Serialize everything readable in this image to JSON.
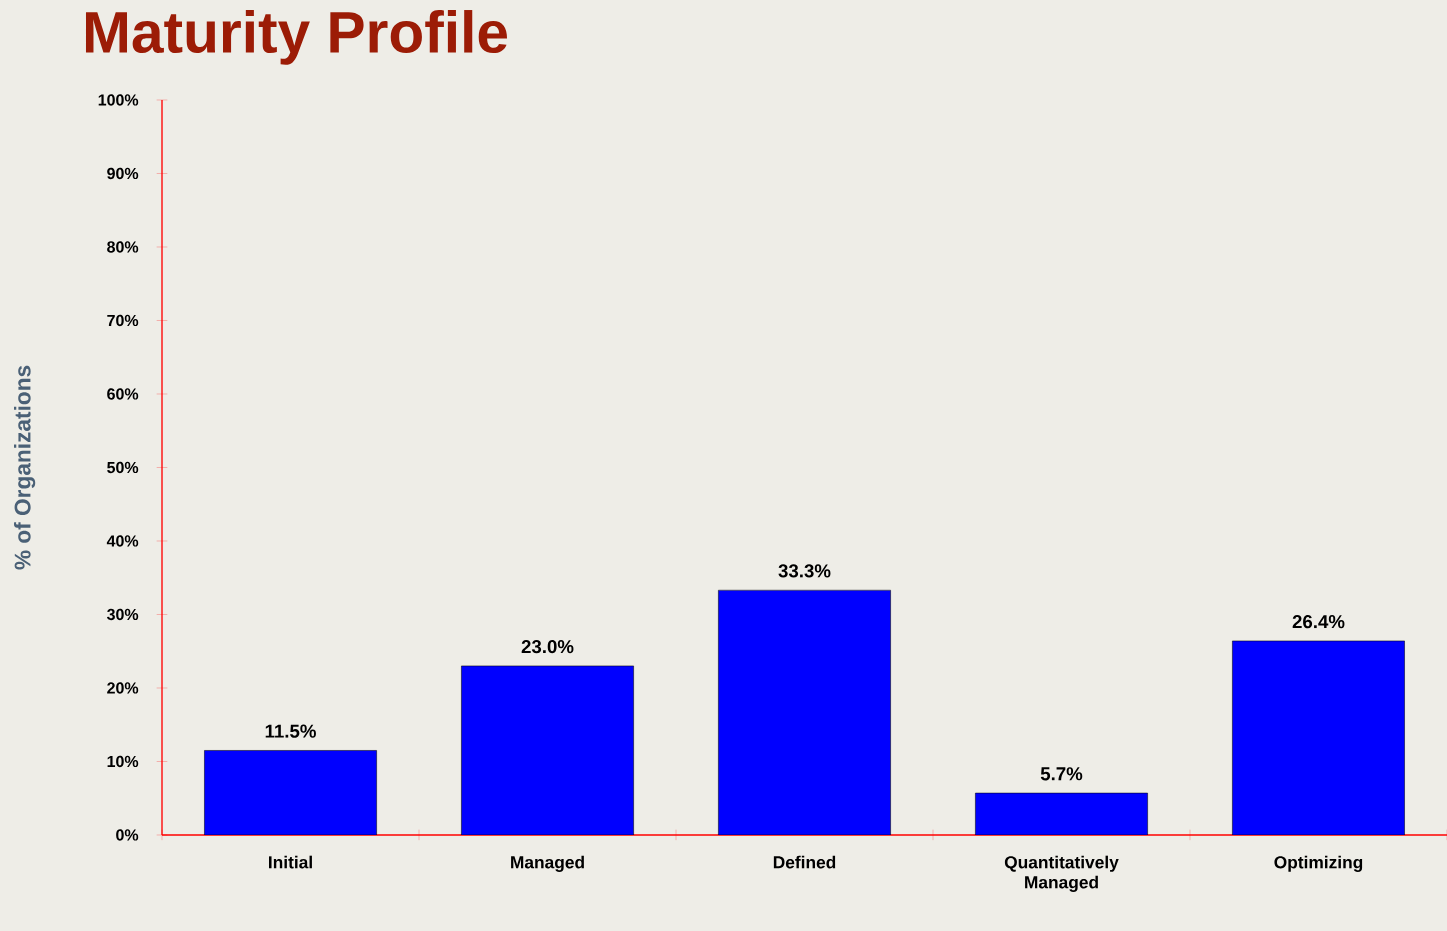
{
  "chart_data": {
    "type": "bar",
    "title": "Maturity Profile",
    "ylabel": "% of Organizations",
    "categories": [
      "Initial",
      "Managed",
      "Defined",
      "Quantitatively Managed",
      "Optimizing"
    ],
    "values": [
      11.5,
      23.0,
      33.3,
      5.7,
      26.4
    ],
    "value_labels": [
      "11.5%",
      "23.0%",
      "33.3%",
      "5.7%",
      "26.4%"
    ],
    "color": "#0000ff",
    "ylim": [
      0,
      100
    ],
    "yticks": [
      {
        "value": 0,
        "label": "0%"
      },
      {
        "value": 10,
        "label": "10%"
      },
      {
        "value": 20,
        "label": "20%"
      },
      {
        "value": 30,
        "label": "30%"
      },
      {
        "value": 40,
        "label": "40%"
      },
      {
        "value": 50,
        "label": "50%"
      },
      {
        "value": 60,
        "label": "60%"
      },
      {
        "value": 70,
        "label": "70%"
      },
      {
        "value": 80,
        "label": "80%"
      },
      {
        "value": 90,
        "label": "90%"
      },
      {
        "value": 100,
        "label": "100%"
      }
    ],
    "grid": false
  }
}
